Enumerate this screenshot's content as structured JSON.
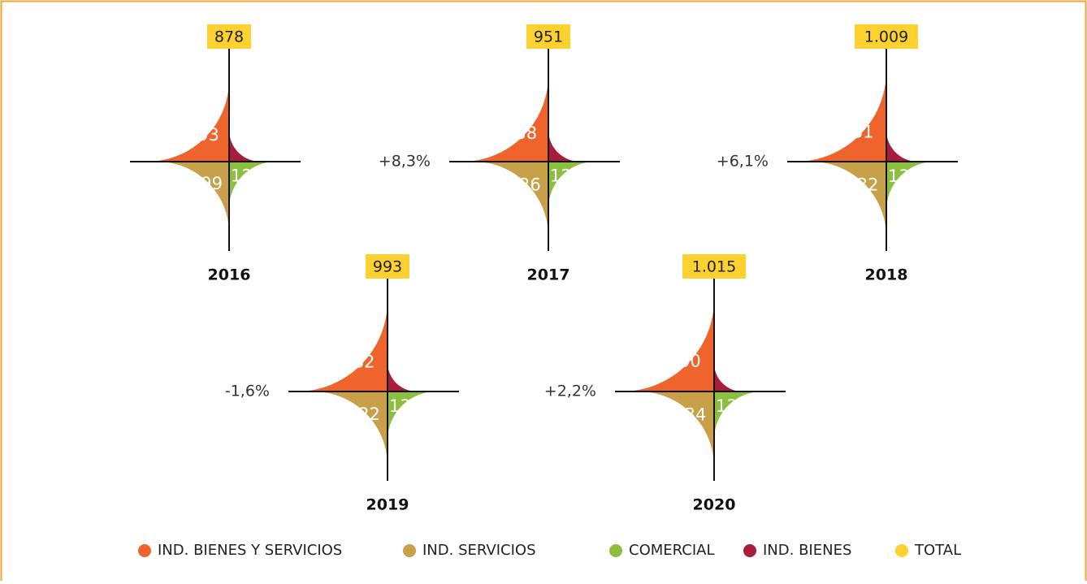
{
  "chart_data": {
    "type": "polar",
    "categories": [
      "2016",
      "2017",
      "2018",
      "2019",
      "2020"
    ],
    "series": [
      {
        "name": "IND. BIENES Y SERVICIOS",
        "color": "#ef642d",
        "values": [
          393,
          438,
          481,
          482,
          500
        ]
      },
      {
        "name": "IND. SERVICIOS",
        "color": "#c8a04a",
        "values": [
          299,
          326,
          332,
          322,
          334
        ]
      },
      {
        "name": "COMERCIAL",
        "color": "#8cbf3f",
        "values": [
          128,
          128,
          138,
          139,
          134
        ]
      },
      {
        "name": "IND. BIENES",
        "color": "#a81c3c",
        "values": [
          58,
          59,
          58,
          50,
          47
        ]
      },
      {
        "name": "TOTAL",
        "color": "#fdd12f",
        "values": [
          878,
          951,
          1009,
          993,
          1015
        ],
        "value_labels": [
          "878",
          "951",
          "1.009",
          "993",
          "1.015"
        ]
      }
    ],
    "growth": {
      "values": [
        null,
        8.3,
        6.1,
        -1.6,
        2.2
      ],
      "value_labels": [
        null,
        "+8,3%",
        "+6,1%",
        "-1,6%",
        "+2,2%"
      ]
    }
  }
}
